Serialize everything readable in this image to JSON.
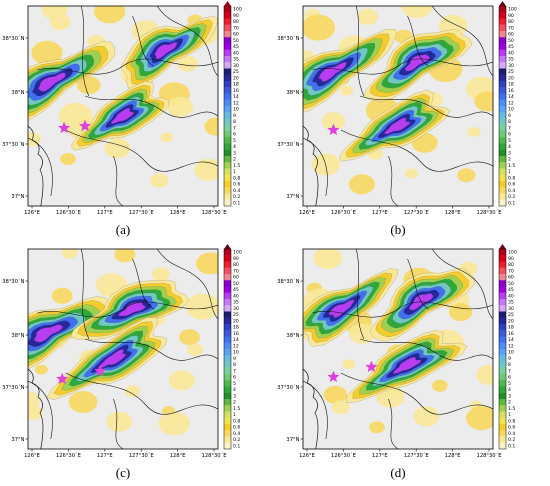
{
  "panels": [
    {
      "label": "(a)",
      "rain": [
        [
          0.12,
          0.38,
          0.35,
          0.05,
          -0.5,
          0.75
        ],
        [
          0.72,
          0.22,
          0.28,
          0.05,
          -0.5,
          0.7
        ],
        [
          0.5,
          0.55,
          0.25,
          0.05,
          -0.5,
          0.75
        ]
      ],
      "markers": [
        [
          0.19,
          0.61
        ],
        [
          0.3,
          0.6
        ]
      ]
    },
    {
      "label": "(b)",
      "rain": [
        [
          0.15,
          0.33,
          0.35,
          0.05,
          -0.5,
          0.75
        ],
        [
          0.6,
          0.28,
          0.3,
          0.05,
          -0.55,
          0.7
        ],
        [
          0.5,
          0.6,
          0.28,
          0.05,
          -0.45,
          0.75
        ]
      ],
      "markers": [
        [
          0.16,
          0.62
        ]
      ]
    },
    {
      "label": "(c)",
      "rain": [
        [
          0.1,
          0.42,
          0.35,
          0.06,
          -0.45,
          0.8
        ],
        [
          0.55,
          0.3,
          0.3,
          0.05,
          -0.4,
          0.75
        ],
        [
          0.45,
          0.55,
          0.32,
          0.05,
          -0.5,
          0.78
        ]
      ],
      "markers": [
        [
          0.18,
          0.65
        ],
        [
          0.38,
          0.61
        ]
      ]
    },
    {
      "label": "(d)",
      "rain": [
        [
          0.2,
          0.3,
          0.3,
          0.05,
          -0.5,
          0.7
        ],
        [
          0.62,
          0.26,
          0.3,
          0.05,
          -0.55,
          0.7
        ],
        [
          0.55,
          0.58,
          0.3,
          0.05,
          -0.45,
          0.75
        ]
      ],
      "markers": [
        [
          0.16,
          0.64
        ],
        [
          0.36,
          0.59
        ]
      ]
    }
  ],
  "axes": {
    "x_ticks": [
      "126°E",
      "126°30´E",
      "127°E",
      "127°30´E",
      "128°E",
      "128°30´E"
    ],
    "y_ticks": [
      "38°30´N",
      "38°N",
      "37°30´N",
      "37°N"
    ]
  },
  "colorbar": {
    "levels": [
      "100",
      "90",
      "80",
      "70",
      "60",
      "50",
      "45",
      "40",
      "35",
      "30",
      "25",
      "20",
      "18",
      "16",
      "14",
      "12",
      "10",
      "9",
      "8",
      "7",
      "6",
      "5",
      "4",
      "3",
      "2",
      "1.5",
      "1",
      "0.8",
      "0.6",
      "0.4",
      "0.2",
      "0.1"
    ],
    "colors": [
      "#b0001a",
      "#d6001c",
      "#ee2030",
      "#f25060",
      "#f28496",
      "#8a00c8",
      "#a000e0",
      "#b83cf0",
      "#c878f8",
      "#d8a8f8",
      "#1c1c70",
      "#24289a",
      "#3040c0",
      "#3a58d8",
      "#4070f0",
      "#4c8cf4",
      "#58a4f6",
      "#66bce0",
      "#70c8c0",
      "#78d0a0",
      "#70c878",
      "#4eb84c",
      "#2ea83a",
      "#20902c",
      "#60b840",
      "#a0d050",
      "#d6e060",
      "#f2e24c",
      "#f5cc2e",
      "#f7d860",
      "#f9e898",
      "#fbf2c8"
    ]
  }
}
